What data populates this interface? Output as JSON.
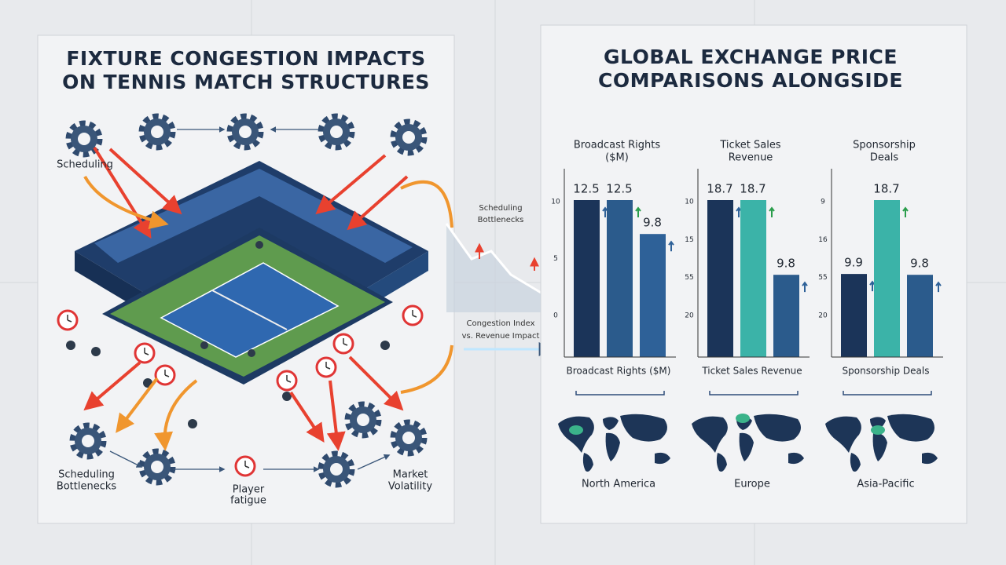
{
  "left_panel": {
    "title": [
      "FIXTURE CONGESTION IMPACTS",
      "ON TENNIS MATCH STRUCTURES"
    ],
    "labels": {
      "scheduling": "Scheduling",
      "bottlenecks": [
        "Scheduling",
        "Bottlenecks"
      ],
      "fatigue": [
        "Player",
        "fatigue"
      ],
      "volatility": [
        "Market",
        "Volatility"
      ]
    }
  },
  "connector": {
    "top_label": [
      "Scheduling",
      "Bottlenecks"
    ],
    "bottom_label": [
      "Congestion Index",
      "vs. Revenue Impact"
    ]
  },
  "right_panel": {
    "title": [
      "GLOBAL EXCHANGE PRICE",
      "COMPARISONS ALONGSIDE"
    ],
    "charts": [
      {
        "title": [
          "Broadcast Rights",
          "($M)"
        ],
        "axis_labels": [
          10,
          5,
          0
        ],
        "values": [
          12.5,
          12.5,
          9.8
        ],
        "colors": [
          "#1b3459",
          "#2b5b8c",
          "#2e6198"
        ],
        "x_label": "Broadcast Rights ($M)",
        "region": "North America"
      },
      {
        "title": [
          "Ticket Sales",
          "Revenue"
        ],
        "axis_labels": [
          10,
          15,
          55,
          20
        ],
        "values": [
          18.7,
          18.7,
          9.8
        ],
        "colors": [
          "#1b3459",
          "#3bb3a8",
          "#2b5b8c"
        ],
        "x_label": "Ticket Sales Revenue",
        "region": "Europe"
      },
      {
        "title": [
          "Sponsorship",
          "Deals"
        ],
        "axis_labels": [
          9,
          16,
          55,
          20
        ],
        "values": [
          9.9,
          18.7,
          9.8
        ],
        "colors": [
          "#1b3459",
          "#3bb3a8",
          "#2b5b8c"
        ],
        "x_label": "Sponsorship Deals",
        "region": "Asia-Pacific"
      }
    ]
  }
}
